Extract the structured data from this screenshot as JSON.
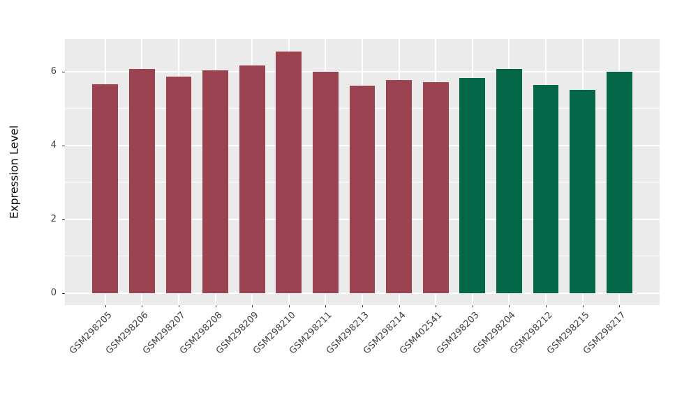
{
  "chart_data": {
    "type": "bar",
    "title": "",
    "xlabel": "",
    "ylabel": "Expression Level",
    "categories": [
      "GSM298205",
      "GSM298206",
      "GSM298207",
      "GSM298208",
      "GSM298209",
      "GSM298210",
      "GSM298211",
      "GSM298213",
      "GSM298214",
      "GSM402541",
      "GSM298203",
      "GSM298204",
      "GSM298212",
      "GSM298215",
      "GSM298217"
    ],
    "values": [
      5.66,
      6.06,
      5.87,
      6.03,
      6.16,
      6.54,
      5.99,
      5.62,
      5.76,
      5.71,
      5.83,
      6.06,
      5.64,
      5.51,
      6.0
    ],
    "bar_colors": [
      "#9B4351",
      "#9B4351",
      "#9B4351",
      "#9B4351",
      "#9B4351",
      "#9B4351",
      "#9B4351",
      "#9B4351",
      "#9B4351",
      "#9B4351",
      "#046748",
      "#046748",
      "#046748",
      "#046748",
      "#046748"
    ],
    "group_colors": {
      "group1": "#9B4351",
      "group2": "#046748"
    },
    "y_major_ticks": [
      0,
      2,
      4,
      6
    ],
    "y_minor_ticks": [
      1,
      3,
      5
    ],
    "ylim": [
      -0.33,
      6.88
    ],
    "x_expand": 0.6,
    "bar_width_ratio": 0.7,
    "x_tick_angle": 45,
    "grid": "on",
    "legend": "none",
    "panel_bg": "#EBEBEB",
    "grid_color": "#FFFFFF",
    "tick_mark_color": "#333333",
    "tick_label_color": "#404040"
  }
}
